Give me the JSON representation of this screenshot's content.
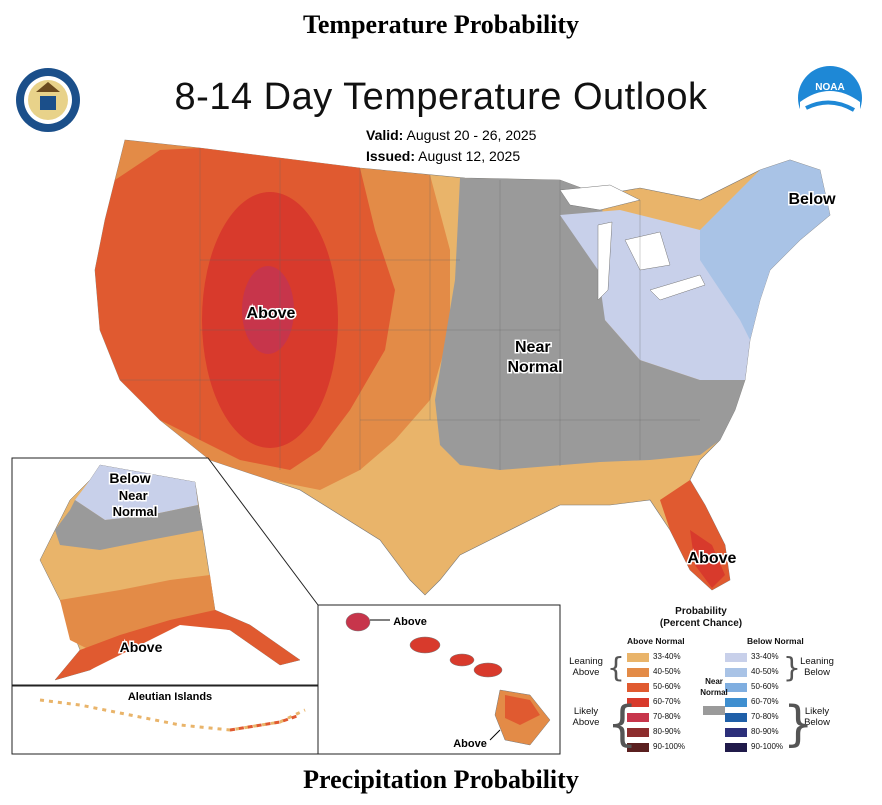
{
  "page": {
    "heading": "Temperature Probability",
    "footer_heading": "Precipitation Probability"
  },
  "map": {
    "title": "8-14 Day Temperature Outlook",
    "valid_label": "Valid:",
    "valid_value": "August 20 - 26, 2025",
    "issued_label": "Issued:",
    "issued_value": "August 12, 2025",
    "left_logo": "commerce-seal-icon",
    "right_logo": "noaa-logo-icon",
    "region_labels": {
      "conus_west": "Above",
      "conus_central": "Near Normal",
      "conus_northeast": "Below",
      "florida": "Above",
      "alaska_north": "Below",
      "alaska_north_central": "Near Normal",
      "alaska_south": "Above",
      "hawaii_kauai": "Above",
      "hawaii_big_island": "Above"
    },
    "inset_label_aleutian": "Aleutian Islands"
  },
  "legend": {
    "title_line1": "Probability",
    "title_line2": "(Percent Chance)",
    "above_header": "Above Normal",
    "below_header": "Below Normal",
    "near_normal_label": "Near Normal",
    "leaning_above": "Leaning Above",
    "likely_above": "Likely Above",
    "leaning_below": "Leaning Below",
    "likely_below": "Likely Below",
    "above_bins": [
      {
        "label": "33-40%",
        "color": "#e9b46a"
      },
      {
        "label": "40-50%",
        "color": "#e38b47"
      },
      {
        "label": "50-60%",
        "color": "#e05a30"
      },
      {
        "label": "60-70%",
        "color": "#d83a2c"
      },
      {
        "label": "70-80%",
        "color": "#c7354b"
      },
      {
        "label": "80-90%",
        "color": "#8d2d2d"
      },
      {
        "label": "90-100%",
        "color": "#5a1f1f"
      }
    ],
    "near_normal_color": "#9a9a9a",
    "below_bins": [
      {
        "label": "33-40%",
        "color": "#c8d0ea"
      },
      {
        "label": "40-50%",
        "color": "#a9c3e6"
      },
      {
        "label": "50-60%",
        "color": "#7faee0"
      },
      {
        "label": "60-70%",
        "color": "#3f8fd0"
      },
      {
        "label": "70-80%",
        "color": "#1f5fa8"
      },
      {
        "label": "80-90%",
        "color": "#2c2f7a"
      },
      {
        "label": "90-100%",
        "color": "#201a4a"
      }
    ]
  }
}
